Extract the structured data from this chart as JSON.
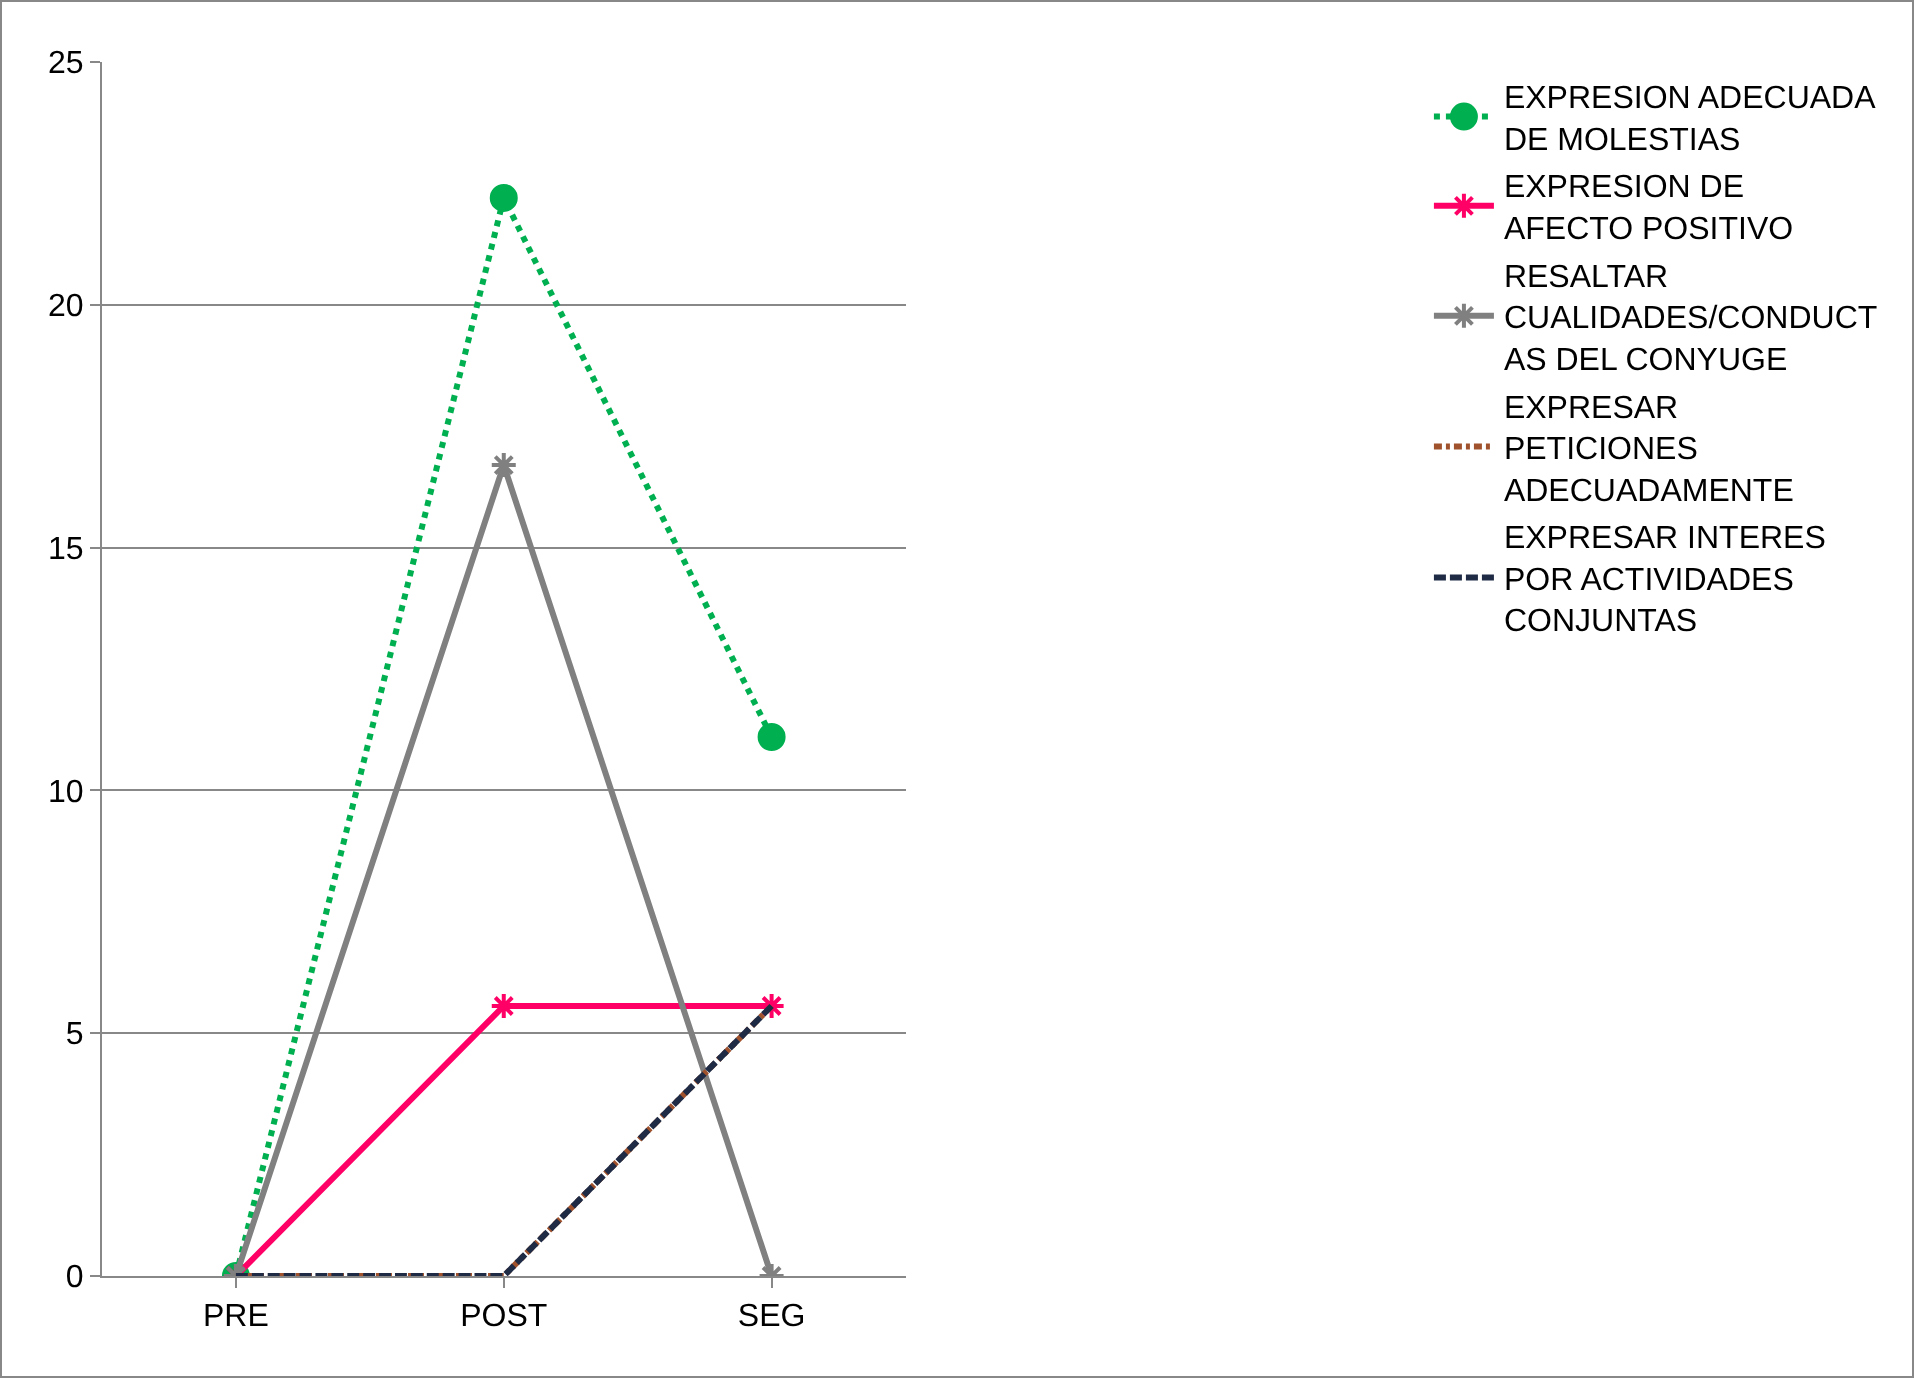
{
  "chart_data": {
    "type": "line",
    "categories": [
      "PRE",
      "POST",
      "SEG"
    ],
    "series": [
      {
        "name": "EXPRESION ADECUADA DE MOLESTIAS",
        "color": "#00b050",
        "values": [
          0,
          22.2,
          11.1
        ],
        "marker": "circle",
        "line_style": "dotted"
      },
      {
        "name": "EXPRESION DE AFECTO POSITIVO",
        "color": "#ff0066",
        "values": [
          0,
          5.56,
          5.56
        ],
        "marker": "cross",
        "line_style": "solid"
      },
      {
        "name": "RESALTAR CUALIDADES/CONDUCTAS DEL CONYUGE",
        "color": "#808080",
        "values": [
          0,
          16.7,
          0
        ],
        "marker": "cross",
        "line_style": "solid"
      },
      {
        "name": "EXPRESAR PETICIONES ADECUADAMENTE",
        "color": "#a0522d",
        "values": [
          0,
          0,
          5.56
        ],
        "marker": "none",
        "line_style": "dashdot"
      },
      {
        "name": "EXPRESAR INTERES POR ACTIVIDADES CONJUNTAS",
        "color": "#1f2a44",
        "values": [
          0,
          0,
          5.56
        ],
        "marker": "none",
        "line_style": "dashed"
      }
    ],
    "ylim": [
      0,
      25
    ],
    "yticks": [
      0,
      5,
      10,
      15,
      20,
      25
    ],
    "grid": "y",
    "legend": "right"
  }
}
